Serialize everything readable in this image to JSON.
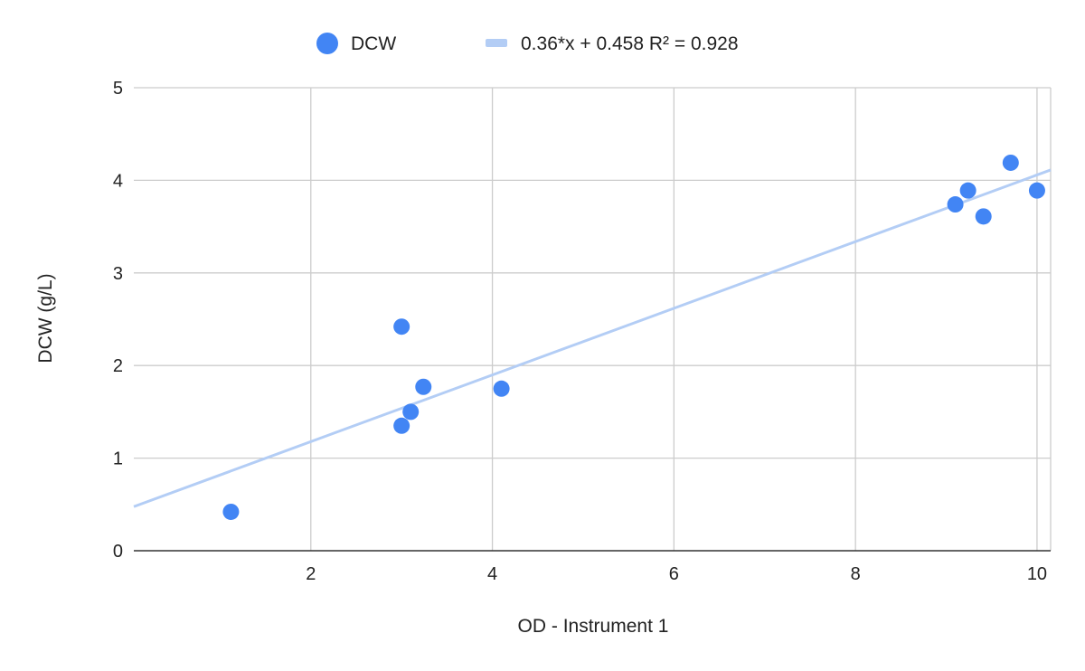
{
  "chart_data": {
    "type": "scatter",
    "title": "",
    "xlabel": "OD - Instrument 1",
    "ylabel": "DCW (g/L)",
    "xlim": [
      0.05,
      10.15
    ],
    "ylim": [
      0,
      5
    ],
    "x_ticks": [
      2,
      4,
      6,
      8,
      10
    ],
    "y_ticks": [
      0,
      1,
      2,
      3,
      4,
      5
    ],
    "grid": true,
    "legend_position": "top",
    "series": [
      {
        "name": "DCW",
        "color": "#4285f4",
        "points": [
          {
            "x": 1.12,
            "y": 0.42
          },
          {
            "x": 3.0,
            "y": 2.42
          },
          {
            "x": 3.0,
            "y": 1.35
          },
          {
            "x": 3.1,
            "y": 1.5
          },
          {
            "x": 3.24,
            "y": 1.77
          },
          {
            "x": 4.1,
            "y": 1.75
          },
          {
            "x": 9.1,
            "y": 3.74
          },
          {
            "x": 9.24,
            "y": 3.89
          },
          {
            "x": 9.41,
            "y": 3.61
          },
          {
            "x": 9.71,
            "y": 4.19
          },
          {
            "x": 10.0,
            "y": 3.89
          }
        ]
      }
    ],
    "trendline": {
      "label": "0.36*x + 0.458 R² = 0.928",
      "slope": 0.36,
      "intercept": 0.458,
      "r_squared": 0.928,
      "color": "#b3cdf5"
    }
  }
}
